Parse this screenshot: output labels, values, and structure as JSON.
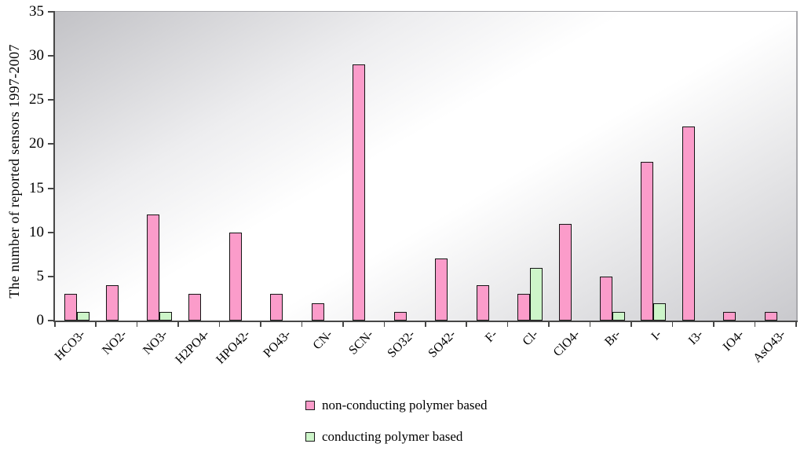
{
  "figure": {
    "background": "#ffffff"
  },
  "chart_data": {
    "type": "bar",
    "title": "",
    "ylabel": "The number of reported sensors 1997-2007",
    "xlabel": "",
    "ylim": [
      0,
      35
    ],
    "ytick_step": 5,
    "ytick_labels": [
      "0",
      "5",
      "10",
      "15",
      "20",
      "25",
      "30",
      "35"
    ],
    "grid": false,
    "legend_position": "bottom-center",
    "plot_background_gradient": [
      "#c2c2c6",
      "#ffffff",
      "#c9c9cd"
    ],
    "axis_color": "#474747",
    "categories": [
      "HCO3-",
      "NO2-",
      "NO3-",
      "H2PO4-",
      "HPO42-",
      "PO43-",
      "CN-",
      "SCN-",
      "SO32-",
      "SO42-",
      "F-",
      "Cl-",
      "ClO4-",
      "Br-",
      "I-",
      "I3-",
      "IO4-",
      "AsO43-"
    ],
    "series": [
      {
        "name": "non-conducting polymer based",
        "color": "#fb9cca",
        "border_color": "#151515",
        "values": [
          3,
          4,
          12,
          3,
          10,
          3,
          2,
          29,
          1,
          7,
          4,
          3,
          11,
          5,
          18,
          22,
          1,
          1
        ]
      },
      {
        "name": "conducting polymer based",
        "color": "#cdf5c9",
        "border_color": "#151515",
        "values": [
          1,
          0,
          1,
          0,
          0,
          0,
          0,
          0,
          0,
          0,
          0,
          6,
          0,
          1,
          2,
          0,
          0,
          0
        ]
      }
    ]
  }
}
